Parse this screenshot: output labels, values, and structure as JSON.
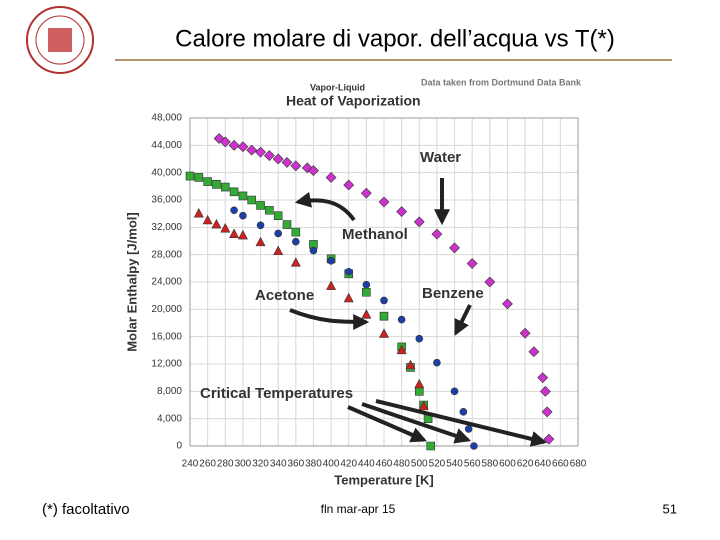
{
  "slide": {
    "title": "Calore molare di vapor. dell’acqua vs T(*)",
    "footnote": "(*) facoltativo",
    "footer": "fln mar-apr 15",
    "page": "51"
  },
  "chart_data": {
    "type": "scatter",
    "title": "Heat of Vaporization",
    "subtitle": "Vapor-Liquid",
    "source": "Data taken from Dortmund Data Bank",
    "x_label": "Temperature [K]",
    "y_label": "Molar Enthalpy [J/mol]",
    "annotation": "Critical Temperatures",
    "xlim": [
      240,
      680
    ],
    "xticks": [
      240,
      260,
      280,
      300,
      320,
      340,
      360,
      380,
      400,
      420,
      440,
      460,
      480,
      500,
      520,
      540,
      560,
      580,
      600,
      620,
      640,
      660,
      680
    ],
    "ylim": [
      0,
      48000
    ],
    "yticks": [
      0,
      {
        "value": 4000,
        "label": "4,000"
      },
      {
        "value": 8000,
        "label": "8,000"
      },
      {
        "value": 12000,
        "label": "12,000"
      },
      {
        "value": 16000,
        "label": "16,000"
      },
      {
        "value": 20000,
        "label": "20,000"
      },
      {
        "value": 24000,
        "label": "24,000"
      },
      {
        "value": 28000,
        "label": "28,000"
      },
      {
        "value": 32000,
        "label": "32,000"
      },
      {
        "value": 36000,
        "label": "36,000"
      },
      {
        "value": 40000,
        "label": "40,000"
      },
      {
        "value": 44000,
        "label": "44,000"
      },
      {
        "value": 48000,
        "label": "48,000"
      }
    ],
    "grid": true,
    "series": [
      {
        "name": "Water",
        "color": "#cc33cc",
        "marker": "diamond",
        "x": [
          273,
          280,
          290,
          300,
          310,
          320,
          330,
          340,
          350,
          360,
          373,
          380,
          400,
          420,
          440,
          460,
          480,
          500,
          520,
          540,
          560,
          580,
          600,
          620,
          630,
          640,
          643,
          645,
          647
        ],
        "values": [
          45000,
          44500,
          44000,
          43800,
          43300,
          43000,
          42500,
          42000,
          41500,
          41000,
          40700,
          40300,
          39300,
          38200,
          37000,
          35700,
          34300,
          32800,
          31000,
          29000,
          26700,
          24000,
          20800,
          16500,
          13800,
          10000,
          8000,
          5000,
          1000
        ]
      },
      {
        "name": "Methanol",
        "color": "#33aa33",
        "marker": "square",
        "x": [
          240,
          250,
          260,
          270,
          280,
          290,
          300,
          310,
          320,
          330,
          340,
          350,
          360,
          380,
          400,
          420,
          440,
          460,
          480,
          490,
          500,
          505,
          510,
          513
        ],
        "values": [
          39500,
          39300,
          38700,
          38300,
          37900,
          37200,
          36600,
          36000,
          35200,
          34500,
          33700,
          32400,
          31300,
          29500,
          27400,
          25200,
          22500,
          19000,
          14500,
          11500,
          8000,
          6000,
          4000,
          0
        ]
      },
      {
        "name": "Benzene",
        "color": "#1f3fa8",
        "marker": "circle",
        "x": [
          290,
          300,
          320,
          340,
          360,
          380,
          400,
          420,
          440,
          460,
          480,
          500,
          520,
          540,
          550,
          556,
          562
        ],
        "values": [
          34500,
          33700,
          32300,
          31100,
          29900,
          28600,
          27100,
          25500,
          23600,
          21300,
          18500,
          15700,
          12200,
          8000,
          5000,
          2500,
          0
        ]
      },
      {
        "name": "Acetone",
        "color": "#cc2222",
        "marker": "triangle",
        "x": [
          250,
          260,
          270,
          280,
          290,
          300,
          320,
          340,
          360,
          400,
          420,
          440,
          460,
          480,
          490,
          500,
          505
        ],
        "values": [
          34000,
          33000,
          32400,
          31800,
          31000,
          30800,
          29800,
          28500,
          26800,
          23400,
          21600,
          19200,
          16400,
          14000,
          11800,
          9000,
          5800
        ]
      }
    ]
  }
}
